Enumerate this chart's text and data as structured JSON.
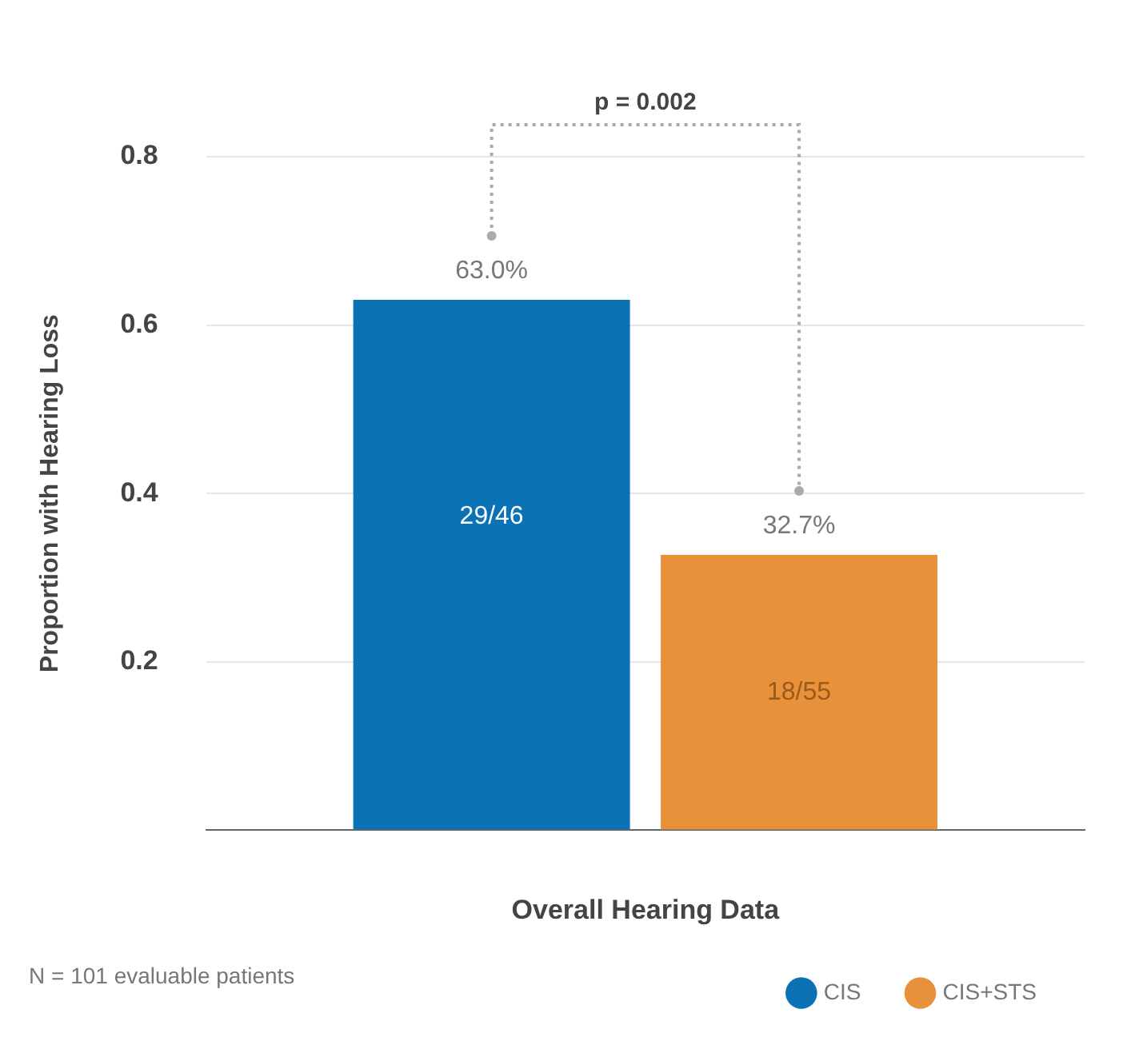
{
  "chart_data": {
    "type": "bar",
    "xlabel": "Overall Hearing Data",
    "ylabel": "Proportion with Hearing Loss",
    "categories": [
      null
    ],
    "series": [
      {
        "name": "CIS",
        "color": "#0b72b5",
        "values": [
          0.63
        ],
        "value_labels": [
          "63.0%"
        ]
      },
      {
        "name": "CIS+STS",
        "color": "#e8913a",
        "values": [
          0.327
        ],
        "value_labels": [
          "32.7%"
        ]
      }
    ],
    "ylim": [
      0,
      0.8
    ],
    "yticks": [
      {
        "value": 0,
        "label": null
      },
      0.2,
      0.4,
      0.6,
      0.8
    ],
    "grid": "y",
    "legend": "bottom right",
    "annotations": [
      "p = 0.002",
      "29/46",
      "18/55",
      "N = 101 evaluable patients"
    ]
  }
}
